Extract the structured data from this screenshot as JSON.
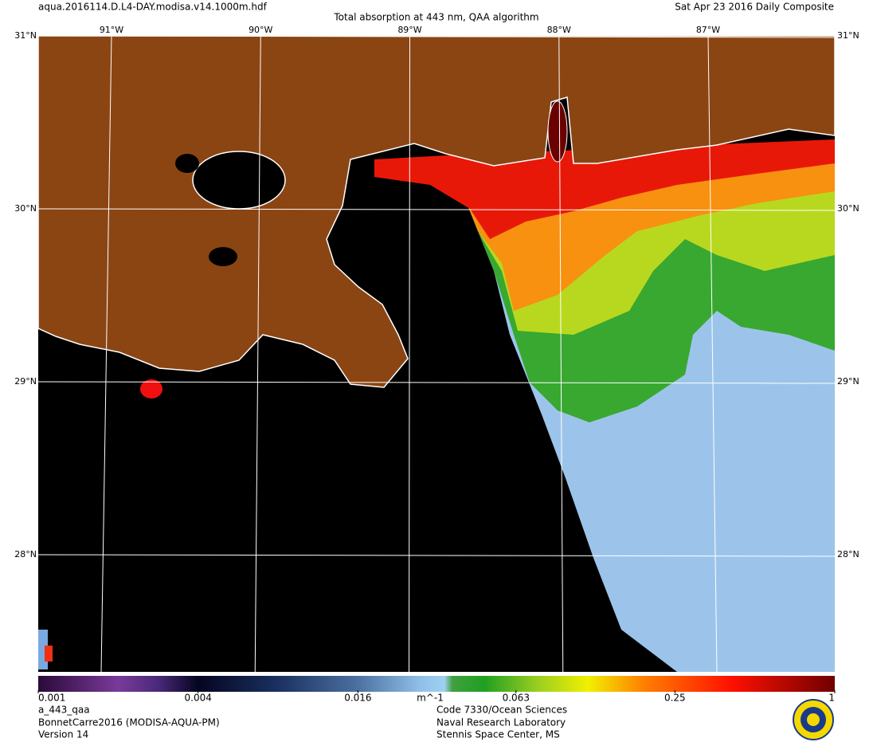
{
  "header": {
    "file": "aqua.2016114.D.L4-DAY.modisa.v14.1000m.hdf",
    "title": "Total absorption at 443 nm, QAA algorithm",
    "date": "Sat Apr 23 2016 Daily Composite"
  },
  "map": {
    "lat_ticks": [
      {
        "value": 31,
        "label": "31°N"
      },
      {
        "value": 30,
        "label": "30°N"
      },
      {
        "value": 29,
        "label": "29°N"
      },
      {
        "value": 28,
        "label": "28°N"
      }
    ],
    "lon_ticks": [
      {
        "value": -91,
        "label": "91°W"
      },
      {
        "value": -90,
        "label": "90°W"
      },
      {
        "value": -89,
        "label": "89°W"
      },
      {
        "value": -88,
        "label": "88°W"
      },
      {
        "value": -87,
        "label": "87°W"
      }
    ]
  },
  "colorbar": {
    "scale": "log",
    "ticks": [
      0.001,
      0.004,
      0.016,
      0.063,
      0.25,
      1
    ],
    "unit": "m^-1"
  },
  "footer": {
    "product": [
      "a_443_qaa",
      "BonnetCarre2016 (MODISA-AQUA-PM)",
      "Version 14"
    ],
    "institution": [
      "Code 7330/Ocean Sciences",
      "Naval Research Laboratory",
      "Stennis Space Center, MS"
    ]
  }
}
